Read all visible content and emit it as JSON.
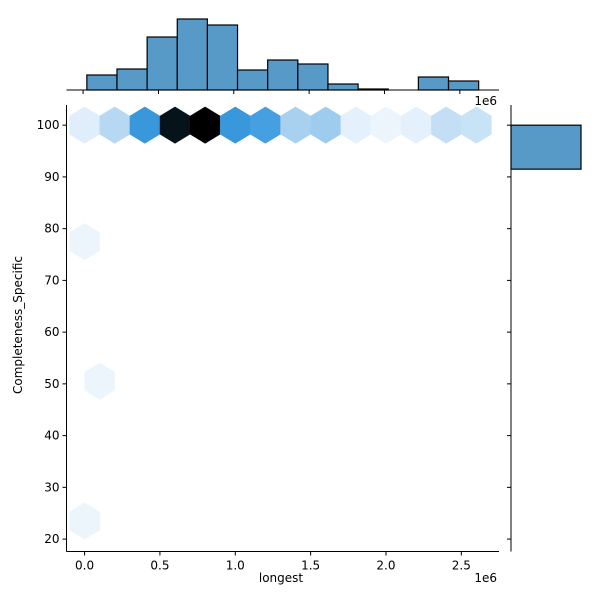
{
  "chart_data": {
    "type": "hexbin-jointplot",
    "xlabel": "longest",
    "ylabel": "Completeness_Specific",
    "x_offset_label": "1e6",
    "top_offset_label": "1e6",
    "xlim": [
      -0.12,
      2.75
    ],
    "ylim": [
      17.6,
      103.9
    ],
    "x_ticks": [
      0.0,
      0.5,
      1.0,
      1.5,
      2.0,
      2.5
    ],
    "x_tick_labels": [
      "0.0",
      "0.5",
      "1.0",
      "1.5",
      "2.0",
      "2.5"
    ],
    "y_ticks": [
      20,
      30,
      40,
      50,
      60,
      70,
      80,
      90,
      100
    ],
    "y_tick_labels": [
      "20",
      "30",
      "40",
      "50",
      "60",
      "70",
      "80",
      "90",
      "100"
    ],
    "color": "#3a99de",
    "hexbins": [
      {
        "x": 0.0,
        "y": 100,
        "count": 4
      },
      {
        "x": 0.2,
        "y": 100,
        "count": 13
      },
      {
        "x": 0.4,
        "y": 100,
        "count": 40
      },
      {
        "x": 0.6,
        "y": 100,
        "count": 68
      },
      {
        "x": 0.8,
        "y": 100,
        "count": 72
      },
      {
        "x": 1.0,
        "y": 100,
        "count": 40
      },
      {
        "x": 1.2,
        "y": 100,
        "count": 37
      },
      {
        "x": 1.4,
        "y": 100,
        "count": 16
      },
      {
        "x": 1.6,
        "y": 100,
        "count": 18
      },
      {
        "x": 1.8,
        "y": 100,
        "count": 3
      },
      {
        "x": 2.0,
        "y": 100,
        "count": 1
      },
      {
        "x": 2.2,
        "y": 100,
        "count": 3
      },
      {
        "x": 2.4,
        "y": 100,
        "count": 10
      },
      {
        "x": 2.6,
        "y": 100,
        "count": 9
      },
      {
        "x": 0.0,
        "y": 77.5,
        "count": 1
      },
      {
        "x": 0.1,
        "y": 50.5,
        "count": 1
      },
      {
        "x": 0.0,
        "y": 23.5,
        "count": 1
      }
    ],
    "top_hist": {
      "bin_start": 0.015,
      "bin_width": 0.2,
      "counts": [
        15,
        21,
        53,
        71,
        65,
        20,
        30,
        26,
        6,
        1,
        0,
        13,
        9
      ]
    },
    "right_hist": {
      "bins": [
        {
          "y0": 91.5,
          "y1": 100,
          "count": 1
        }
      ]
    }
  }
}
